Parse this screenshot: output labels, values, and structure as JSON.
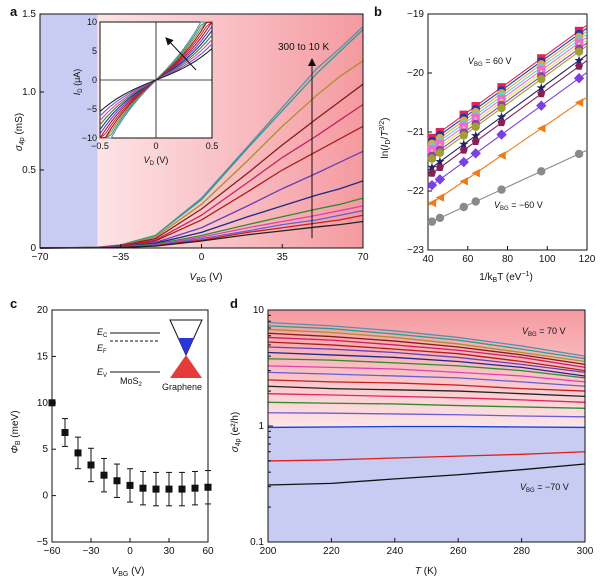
{
  "figure": {
    "panel_labels": [
      "a",
      "b",
      "c",
      "d"
    ]
  },
  "chart_data": [
    {
      "panel": "a",
      "type": "line",
      "ylabel": "σ4p (mS)",
      "ylabel_main": "σ",
      "ylabel_sub": "4p",
      "ylabel_unit": " (mS)",
      "xlabel_main": "V",
      "xlabel_sub": "BG",
      "xlabel_unit": " (V)",
      "xlim": [
        -70,
        70
      ],
      "ylim": [
        0,
        1.5
      ],
      "xticks": [
        "-70",
        "-35",
        "0",
        "35",
        "70"
      ],
      "yticks": [
        "0",
        "0.5",
        "1.0",
        "1.5"
      ],
      "background": {
        "blue_region": [
          -70,
          -45
        ],
        "red_gradient": [
          -45,
          70
        ],
        "blue_color": "#c9ccf2",
        "red_color": "#f6a3a8"
      },
      "annotation": "300 to 10 K",
      "series": [
        {
          "color": "#5b8fa8",
          "x": [
            -70,
            -45,
            -35,
            -20,
            0,
            20,
            35,
            50,
            60,
            70
          ],
          "y": [
            0,
            0.005,
            0.02,
            0.08,
            0.32,
            0.65,
            0.9,
            1.15,
            1.28,
            1.42
          ]
        },
        {
          "color": "#2a9d8f",
          "x": [
            -70,
            -45,
            -35,
            -20,
            0,
            20,
            35,
            50,
            60,
            70
          ],
          "y": [
            0,
            0.005,
            0.02,
            0.08,
            0.31,
            0.64,
            0.88,
            1.12,
            1.26,
            1.4
          ]
        },
        {
          "color": "#b08d2a",
          "x": [
            -70,
            -45,
            -35,
            -20,
            0,
            20,
            35,
            50,
            60,
            70
          ],
          "y": [
            0,
            0.004,
            0.018,
            0.07,
            0.28,
            0.56,
            0.78,
            0.98,
            1.1,
            1.2
          ]
        },
        {
          "color": "#8b1a1a",
          "x": [
            -70,
            -45,
            -35,
            -20,
            0,
            20,
            35,
            50,
            60,
            70
          ],
          "y": [
            0,
            0.004,
            0.016,
            0.06,
            0.25,
            0.48,
            0.66,
            0.83,
            0.94,
            1.05
          ]
        },
        {
          "color": "#cc1f5e",
          "x": [
            -70,
            -45,
            -35,
            -20,
            0,
            20,
            35,
            50,
            60,
            70
          ],
          "y": [
            0,
            0.003,
            0.014,
            0.05,
            0.21,
            0.42,
            0.58,
            0.72,
            0.82,
            0.92
          ]
        },
        {
          "color": "#b31b1b",
          "x": [
            -70,
            -45,
            -35,
            -20,
            0,
            20,
            35,
            50,
            60,
            70
          ],
          "y": [
            0,
            0.003,
            0.012,
            0.045,
            0.18,
            0.36,
            0.5,
            0.62,
            0.7,
            0.78
          ]
        },
        {
          "color": "#6a3db8",
          "x": [
            -70,
            -45,
            -35,
            -20,
            0,
            20,
            35,
            50,
            60,
            70
          ],
          "y": [
            0,
            0.003,
            0.01,
            0.035,
            0.13,
            0.27,
            0.38,
            0.48,
            0.55,
            0.62
          ]
        },
        {
          "color": "#1c2a8a",
          "x": [
            -70,
            -45,
            -35,
            -20,
            0,
            20,
            35,
            50,
            60,
            70
          ],
          "y": [
            0,
            0.002,
            0.008,
            0.03,
            0.1,
            0.2,
            0.27,
            0.34,
            0.38,
            0.43
          ]
        },
        {
          "color": "#2f8a2f",
          "x": [
            -70,
            -45,
            -35,
            -20,
            0,
            20,
            35,
            50,
            60,
            70
          ],
          "y": [
            0,
            0.002,
            0.007,
            0.025,
            0.08,
            0.15,
            0.2,
            0.25,
            0.28,
            0.32
          ]
        },
        {
          "color": "#e040b0",
          "x": [
            -70,
            -45,
            -35,
            -20,
            0,
            20,
            35,
            50,
            60,
            70
          ],
          "y": [
            0,
            0.002,
            0.006,
            0.02,
            0.07,
            0.13,
            0.17,
            0.21,
            0.24,
            0.27
          ]
        },
        {
          "color": "#6a5cd6",
          "x": [
            -70,
            -45,
            -35,
            -20,
            0,
            20,
            35,
            50,
            60,
            70
          ],
          "y": [
            0,
            0.002,
            0.005,
            0.018,
            0.06,
            0.11,
            0.15,
            0.18,
            0.21,
            0.24
          ]
        },
        {
          "color": "#c81e1e",
          "x": [
            -70,
            -45,
            -35,
            -20,
            0,
            20,
            35,
            50,
            60,
            70
          ],
          "y": [
            0,
            0.001,
            0.004,
            0.015,
            0.05,
            0.1,
            0.13,
            0.16,
            0.18,
            0.21
          ]
        },
        {
          "color": "#222222",
          "x": [
            -70,
            -45,
            -35,
            -20,
            0,
            20,
            35,
            50,
            60,
            70
          ],
          "y": [
            0,
            0.001,
            0.004,
            0.012,
            0.045,
            0.085,
            0.11,
            0.135,
            0.15,
            0.17
          ]
        }
      ],
      "inset": {
        "type": "line",
        "xlabel_main": "V",
        "xlabel_sub": "D",
        "xlabel_unit": " (V)",
        "ylabel_main": "I",
        "ylabel_sub": "D",
        "ylabel_unit": " (μA)",
        "xlim": [
          -0.5,
          0.5
        ],
        "ylim": [
          -10,
          10
        ],
        "xticks": [
          "-0.5",
          "0",
          "0.5"
        ],
        "yticks": [
          "-10",
          "-5",
          "0",
          "5",
          "10"
        ],
        "slopes": [
          36,
          34,
          32,
          30,
          28,
          26,
          24,
          22,
          20,
          18,
          16,
          14
        ],
        "colors": [
          "#5b8fa8",
          "#2a9d8f",
          "#b08d2a",
          "#8b1a1a",
          "#cc1f5e",
          "#b31b1b",
          "#6a3db8",
          "#1c2a8a",
          "#2f8a2f",
          "#e040b0",
          "#6a5cd6",
          "#222222"
        ]
      }
    },
    {
      "panel": "b",
      "type": "scatter",
      "xlabel_main": "1/k",
      "xlabel_sub": "B",
      "xlabel_tail": "T (eV",
      "xlabel_sup": "−1",
      "xlabel_end": ")",
      "ylabel": "ln(ID/T3/2)",
      "xlim": [
        40,
        120
      ],
      "ylim": [
        -23,
        -19
      ],
      "xticks": [
        "40",
        "60",
        "80",
        "100",
        "120"
      ],
      "yticks": [
        "-23",
        "-22",
        "-21",
        "-20",
        "-19"
      ],
      "xvals": [
        42,
        46,
        58,
        64,
        77,
        97,
        116
      ],
      "annot_top_main": "V",
      "annot_top_sub": "BG",
      "annot_top_val": " = 60 V",
      "annot_bottom_main": "V",
      "annot_bottom_sub": "BG",
      "annot_bottom_val": " = −60 V",
      "series": [
        {
          "color": "#e0245e",
          "marker": "square",
          "intercept": -21.15,
          "slope": 0.0245
        },
        {
          "color": "#1f3aa6",
          "marker": "circle",
          "intercept": -21.2,
          "slope": 0.0245
        },
        {
          "color": "#e8a33a",
          "marker": "circle",
          "intercept": -21.25,
          "slope": 0.0245
        },
        {
          "color": "#5ad3d3",
          "marker": "diamond",
          "intercept": -21.3,
          "slope": 0.0245
        },
        {
          "color": "#f26bd3",
          "marker": "square",
          "intercept": -21.35,
          "slope": 0.0245
        },
        {
          "color": "#e3e34a",
          "marker": "triangle",
          "intercept": -21.4,
          "slope": 0.0245
        },
        {
          "color": "#8e44ad",
          "marker": "circle",
          "intercept": -21.45,
          "slope": 0.0245
        },
        {
          "color": "#a0a030",
          "marker": "circle",
          "intercept": -21.5,
          "slope": 0.0245
        },
        {
          "color": "#222266",
          "marker": "star",
          "intercept": -21.65,
          "slope": 0.0245
        },
        {
          "color": "#8b1e55",
          "marker": "pentagon",
          "intercept": -21.75,
          "slope": 0.0245
        },
        {
          "color": "#7b3fe4",
          "marker": "diamond",
          "intercept": -21.95,
          "slope": 0.0245
        },
        {
          "color": "#f07a18",
          "marker": "triangle-left",
          "intercept": -22.25,
          "slope": 0.023
        },
        {
          "color": "#8a8a8a",
          "marker": "circle",
          "intercept": -22.55,
          "slope": 0.0155
        }
      ]
    },
    {
      "panel": "c",
      "type": "scatter",
      "xlabel_main": "V",
      "xlabel_sub": "BG",
      "xlabel_unit": " (V)",
      "ylabel_main": "Φ",
      "ylabel_sub": "B",
      "ylabel_unit": " (meV)",
      "xlim": [
        -60,
        60
      ],
      "ylim": [
        -5,
        20
      ],
      "xticks": [
        "-60",
        "-30",
        "0",
        "30",
        "60"
      ],
      "yticks": [
        "-5",
        "0",
        "5",
        "10",
        "15",
        "20"
      ],
      "x": [
        -60,
        -50,
        -40,
        -30,
        -20,
        -10,
        0,
        10,
        20,
        30,
        40,
        50,
        60
      ],
      "y": [
        10.0,
        6.8,
        4.6,
        3.3,
        2.2,
        1.6,
        1.1,
        0.8,
        0.7,
        0.7,
        0.7,
        0.8,
        0.9
      ],
      "err": [
        0,
        1.5,
        1.7,
        1.8,
        1.8,
        1.8,
        1.8,
        1.8,
        1.8,
        1.8,
        1.8,
        1.8,
        1.8
      ],
      "inset": {
        "ec_main": "E",
        "ec_sub": "C",
        "ef_main": "E",
        "ef_sub": "F",
        "ev_main": "E",
        "ev_sub": "V",
        "mos2_main": "MoS",
        "mos2_sub": "2",
        "graphene": "Graphene"
      }
    },
    {
      "panel": "d",
      "type": "line",
      "xlabel_main": "T",
      "xlabel_unit": " (K)",
      "ylabel_main": "σ",
      "ylabel_sub": "4p",
      "ylabel_unit": " (e²/h)",
      "xlim": [
        200,
        300
      ],
      "ylim": [
        0.1,
        10
      ],
      "yscale": "log",
      "xticks": [
        "200",
        "220",
        "240",
        "260",
        "280",
        "300"
      ],
      "yticks": [
        "0.1",
        "1",
        "10"
      ],
      "annot_top_main": "V",
      "annot_top_sub": "BG",
      "annot_top_val": " = 70 V",
      "annot_bottom_main": "V",
      "annot_bottom_sub": "BG",
      "annot_bottom_val": " = −70 V",
      "background": {
        "red_above": 1.0,
        "red_color": "#f6a3a8",
        "blue_color": "#c9ccf2"
      },
      "x": [
        200,
        220,
        240,
        260,
        280,
        300
      ],
      "series": [
        {
          "color": "#5b8fa8",
          "y": [
            7.8,
            7.3,
            6.6,
            5.8,
            4.9,
            4.0
          ]
        },
        {
          "color": "#2a9d8f",
          "y": [
            7.3,
            6.9,
            6.2,
            5.5,
            4.6,
            3.8
          ]
        },
        {
          "color": "#b08d2a",
          "y": [
            6.8,
            6.4,
            5.8,
            5.1,
            4.3,
            3.6
          ]
        },
        {
          "color": "#8b1a1a",
          "y": [
            6.3,
            5.9,
            5.4,
            4.8,
            4.1,
            3.4
          ]
        },
        {
          "color": "#cc1f5e",
          "y": [
            5.8,
            5.5,
            5.0,
            4.5,
            3.9,
            3.2
          ]
        },
        {
          "color": "#b31b1b",
          "y": [
            5.3,
            5.0,
            4.6,
            4.2,
            3.6,
            3.0
          ]
        },
        {
          "color": "#6a3db8",
          "y": [
            4.8,
            4.6,
            4.3,
            3.9,
            3.4,
            2.9
          ]
        },
        {
          "color": "#1c2a8a",
          "y": [
            4.3,
            4.1,
            3.9,
            3.6,
            3.2,
            2.7
          ]
        },
        {
          "color": "#2f8a2f",
          "y": [
            3.8,
            3.7,
            3.5,
            3.3,
            3.0,
            2.6
          ]
        },
        {
          "color": "#e040b0",
          "y": [
            3.3,
            3.2,
            3.1,
            2.9,
            2.7,
            2.4
          ]
        },
        {
          "color": "#6a5cd6",
          "y": [
            2.9,
            2.8,
            2.7,
            2.6,
            2.4,
            2.2
          ]
        },
        {
          "color": "#c81e1e",
          "y": [
            2.5,
            2.4,
            2.35,
            2.25,
            2.1,
            2.0
          ]
        },
        {
          "color": "#222222",
          "y": [
            2.2,
            2.1,
            2.05,
            2.0,
            1.9,
            1.8
          ]
        },
        {
          "color": "#e0245e",
          "y": [
            1.9,
            1.85,
            1.8,
            1.75,
            1.68,
            1.6
          ]
        },
        {
          "color": "#2f8a2f",
          "y": [
            1.6,
            1.57,
            1.55,
            1.5,
            1.46,
            1.42
          ]
        },
        {
          "color": "#6a5cd6",
          "y": [
            1.3,
            1.29,
            1.27,
            1.25,
            1.22,
            1.2
          ]
        },
        {
          "color": "#1c3bd6",
          "y": [
            0.97,
            0.98,
            0.99,
            0.99,
            0.98,
            0.97
          ]
        },
        {
          "color": "#e02020",
          "y": [
            0.5,
            0.51,
            0.53,
            0.55,
            0.57,
            0.6
          ]
        },
        {
          "color": "#111111",
          "y": [
            0.31,
            0.32,
            0.35,
            0.38,
            0.42,
            0.47
          ]
        }
      ]
    }
  ]
}
